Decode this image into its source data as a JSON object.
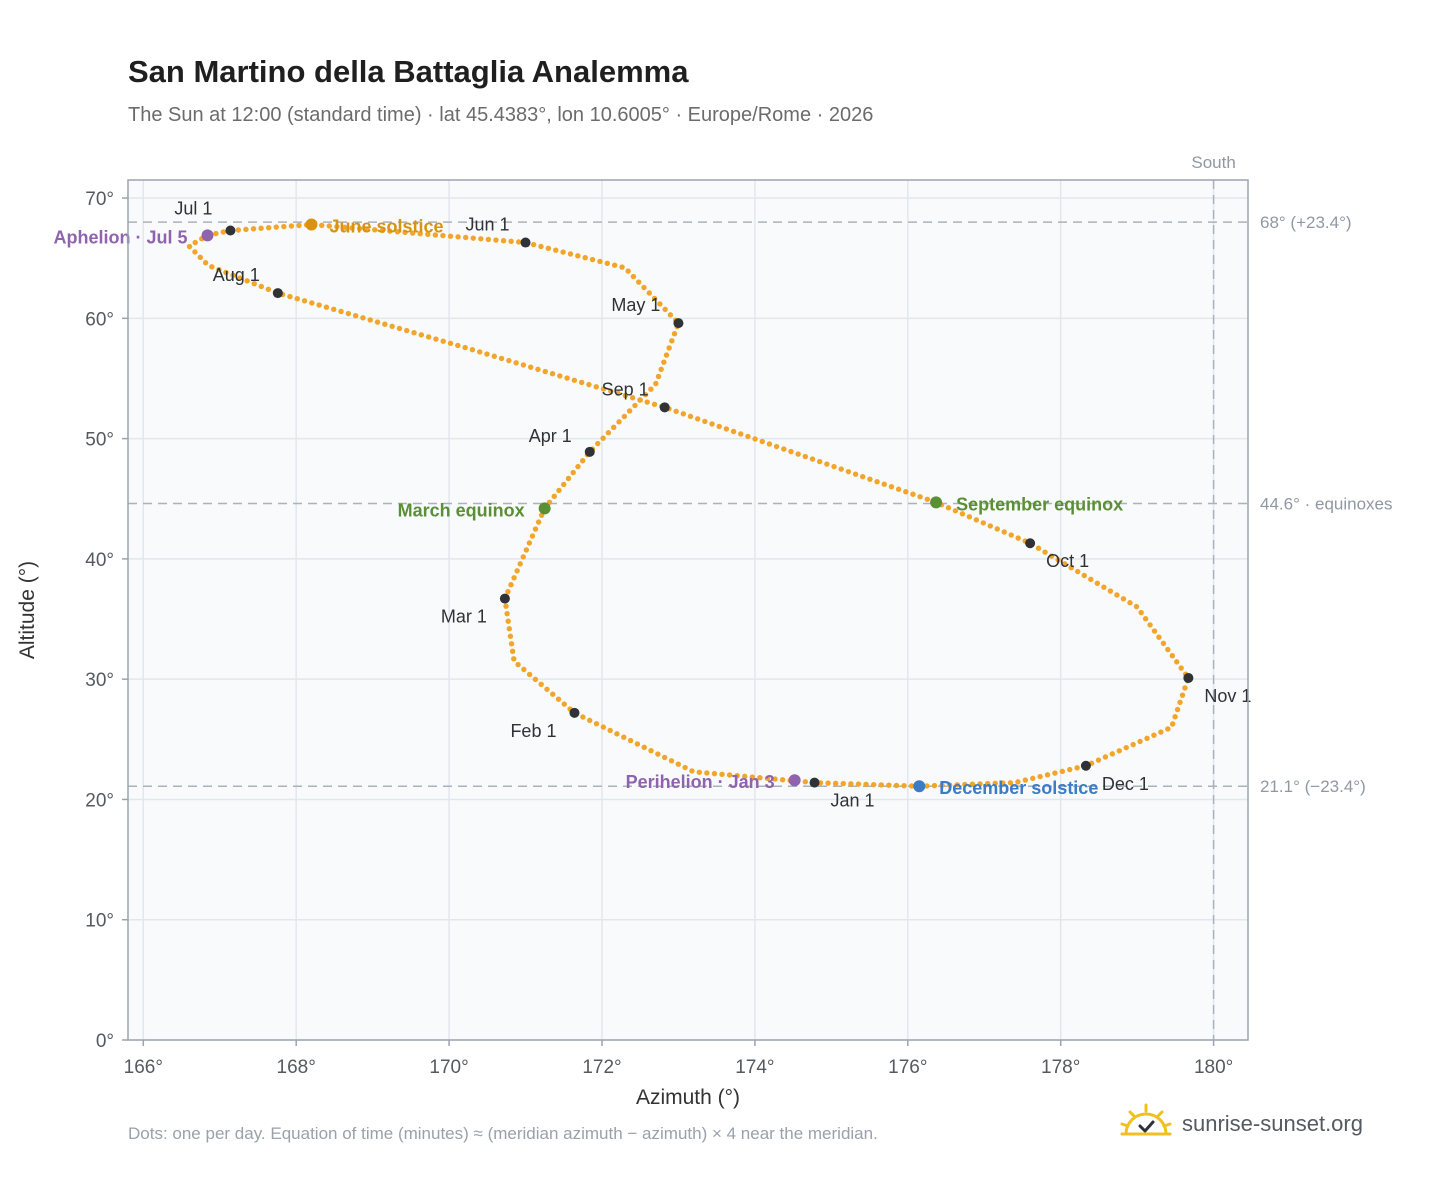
{
  "header": {
    "title": "San Martino della Battaglia Analemma",
    "subtitle": "The Sun at 12:00 (standard time) · lat 45.4383°, lon 10.6005° · Europe/Rome · 2026"
  },
  "footer": {
    "note": "Dots: one per day. Equation of time (minutes) ≈ (meridian azimuth − azimuth) × 4 near the meridian.",
    "brand": "sunrise-sunset.org",
    "brand_icon": "sun-logo-icon"
  },
  "colors": {
    "curve": "#f2a52b",
    "month_marker": "#2f3338",
    "june_solstice": "#d99310",
    "december_solstice": "#3b7cc4",
    "equinox": "#5b8f35",
    "apsis": "#8f63ad",
    "reference_line": "#a9b3bd",
    "plot_background": "#f8fafc",
    "grid": "#e2e7ee"
  },
  "chart_data": {
    "type": "scatter",
    "xlabel": "Azimuth (°)",
    "ylabel": "Altitude (°)",
    "xlim": [
      165.8,
      180.45
    ],
    "ylim": [
      0,
      71.5
    ],
    "x_ticks": [
      166,
      168,
      170,
      172,
      174,
      176,
      178,
      180
    ],
    "x_tick_labels": [
      "166°",
      "168°",
      "170°",
      "172°",
      "174°",
      "176°",
      "178°",
      "180°"
    ],
    "y_ticks": [
      0,
      10,
      20,
      30,
      40,
      50,
      60,
      70
    ],
    "y_tick_labels": [
      "0°",
      "10°",
      "20°",
      "30°",
      "40°",
      "50°",
      "60°",
      "70°"
    ],
    "grid": true,
    "south_line": {
      "azimuth": 180,
      "label": "South"
    },
    "reference_lines": [
      {
        "altitude": 68.0,
        "label": "68° (+23.4°)"
      },
      {
        "altitude": 44.6,
        "label": "44.6° · equinoxes"
      },
      {
        "altitude": 21.1,
        "label": "21.1° (−23.4°)"
      }
    ],
    "monthly_points": [
      {
        "label": "Jan 1",
        "x": 174.78,
        "y": 21.4
      },
      {
        "label": "Feb 1",
        "x": 171.64,
        "y": 27.2
      },
      {
        "label": "Mar 1",
        "x": 170.73,
        "y": 36.7
      },
      {
        "label": "Apr 1",
        "x": 171.84,
        "y": 48.9
      },
      {
        "label": "May 1",
        "x": 173.0,
        "y": 59.6
      },
      {
        "label": "Jun 1",
        "x": 171.0,
        "y": 66.3
      },
      {
        "label": "Jul 1",
        "x": 167.14,
        "y": 67.3
      },
      {
        "label": "Aug 1",
        "x": 167.76,
        "y": 62.1
      },
      {
        "label": "Sep 1",
        "x": 172.82,
        "y": 52.6
      },
      {
        "label": "Oct 1",
        "x": 177.6,
        "y": 41.3
      },
      {
        "label": "Nov 1",
        "x": 179.67,
        "y": 30.1
      },
      {
        "label": "Dec 1",
        "x": 178.33,
        "y": 22.8
      }
    ],
    "events": [
      {
        "label": "June solstice",
        "x": 168.2,
        "y": 67.8,
        "kind": "june_solstice"
      },
      {
        "label": "December solstice",
        "x": 176.15,
        "y": 21.1,
        "kind": "december_solstice"
      },
      {
        "label": "March equinox",
        "x": 171.25,
        "y": 44.2,
        "kind": "equinox"
      },
      {
        "label": "September equinox",
        "x": 176.37,
        "y": 44.7,
        "kind": "equinox"
      },
      {
        "label": "Aphelion · Jul 5",
        "x": 166.84,
        "y": 66.9,
        "kind": "apsis"
      },
      {
        "label": "Perihelion · Jan 3",
        "x": 174.52,
        "y": 21.6,
        "kind": "apsis"
      }
    ],
    "curve_anchor_points": [
      [
        176.15,
        21.1
      ],
      [
        174.78,
        21.4
      ],
      [
        173.2,
        22.3
      ],
      [
        171.64,
        27.2
      ],
      [
        170.85,
        31.5
      ],
      [
        170.73,
        36.7
      ],
      [
        171.25,
        44.2
      ],
      [
        171.84,
        48.9
      ],
      [
        172.7,
        54.5
      ],
      [
        173.0,
        59.6
      ],
      [
        172.3,
        64.2
      ],
      [
        171.0,
        66.3
      ],
      [
        168.2,
        67.8
      ],
      [
        167.14,
        67.3
      ],
      [
        166.84,
        66.9
      ],
      [
        166.6,
        66.0
      ],
      [
        166.85,
        64.4
      ],
      [
        167.76,
        62.1
      ],
      [
        170.3,
        57.4
      ],
      [
        172.82,
        52.6
      ],
      [
        176.37,
        44.7
      ],
      [
        177.6,
        41.3
      ],
      [
        179.0,
        36.0
      ],
      [
        179.67,
        30.1
      ],
      [
        179.45,
        26.0
      ],
      [
        178.33,
        22.8
      ],
      [
        177.4,
        21.4
      ],
      [
        176.15,
        21.1
      ]
    ]
  }
}
